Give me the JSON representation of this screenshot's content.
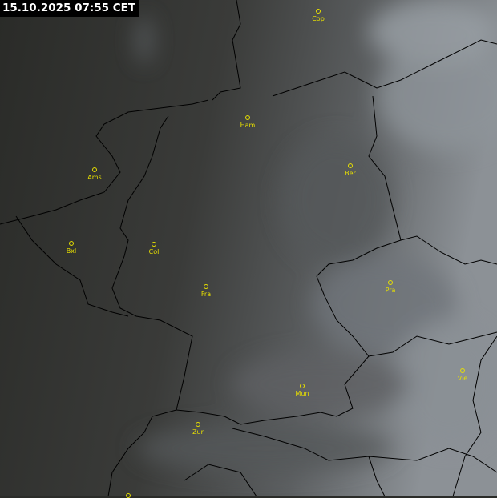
{
  "timestamp": "15.10.2025 07:55 CET",
  "colors": {
    "label": "#e8e000",
    "border": "#000000",
    "background_dark": "#2b2c29",
    "cloud_light": "#9aa0a6"
  },
  "cities": [
    {
      "name": "Cop"
    },
    {
      "name": "Ham"
    },
    {
      "name": "Ams"
    },
    {
      "name": "Ber"
    },
    {
      "name": "Bxl"
    },
    {
      "name": "Col"
    },
    {
      "name": "Fra"
    },
    {
      "name": "Pra"
    },
    {
      "name": "Vie"
    },
    {
      "name": "Mun"
    },
    {
      "name": "Zur"
    },
    {
      "name": ""
    }
  ]
}
